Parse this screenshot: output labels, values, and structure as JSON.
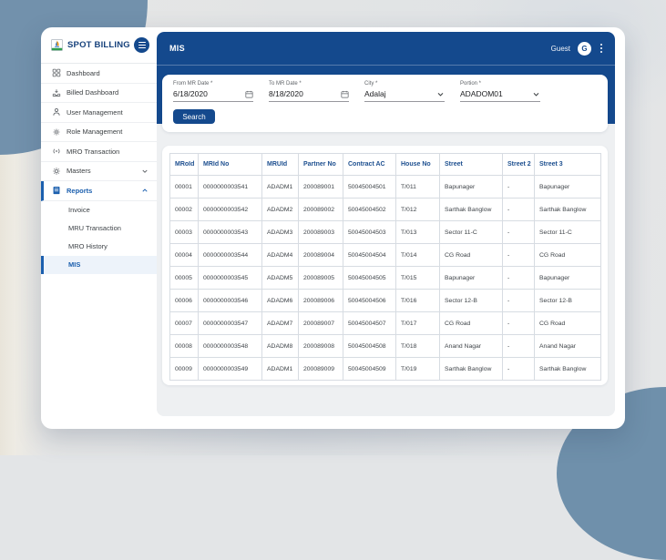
{
  "app": {
    "brand": "SPOT BILLING"
  },
  "topbar": {
    "title": "MIS",
    "user_label": "Guest",
    "avatar_initial": "G"
  },
  "sidebar": {
    "items": [
      {
        "label": "Dashboard",
        "icon": "dashboard-grid-icon"
      },
      {
        "label": "Billed Dashboard",
        "icon": "billed-dashboard-icon"
      },
      {
        "label": "User Management",
        "icon": "user-icon"
      },
      {
        "label": "Role Management",
        "icon": "role-gear-icon"
      },
      {
        "label": "MRO Transaction",
        "icon": "broadcast-icon"
      },
      {
        "label": "Masters",
        "icon": "masters-gear-icon",
        "chevron": "down"
      },
      {
        "label": "Reports",
        "icon": "reports-icon",
        "chevron": "up",
        "active": true
      }
    ],
    "report_children": [
      {
        "label": "Invoice",
        "selected": false
      },
      {
        "label": "MRU Transaction",
        "selected": false
      },
      {
        "label": "MRO History",
        "selected": false
      },
      {
        "label": "MIS",
        "selected": true
      }
    ]
  },
  "filters": {
    "fields": [
      {
        "label": "From MR Date *",
        "value": "6/18/2020",
        "control": "date"
      },
      {
        "label": "To MR Date *",
        "value": "8/18/2020",
        "control": "date"
      },
      {
        "label": "City *",
        "value": "Adalaj",
        "control": "select"
      },
      {
        "label": "Portion *",
        "value": "ADADOM01",
        "control": "select"
      }
    ],
    "search_label": "Search"
  },
  "table": {
    "headers": [
      "MRoId",
      "MRId No",
      "MRUId",
      "Partner No",
      "Contract AC",
      "House No",
      "Street",
      "Street 2",
      "Street 3"
    ],
    "rows": [
      [
        "00001",
        "0000000003541",
        "ADADM1",
        "200089001",
        "50045004501",
        "T/011",
        "Bapunager",
        "-",
        "Bapunager"
      ],
      [
        "00002",
        "0000000003542",
        "ADADM2",
        "200089002",
        "50045004502",
        "T/012",
        "Sarthak Banglow",
        "-",
        "Sarthak Banglow"
      ],
      [
        "00003",
        "0000000003543",
        "ADADM3",
        "200089003",
        "50045004503",
        "T/013",
        "Sector 11-C",
        "-",
        "Sector 11-C"
      ],
      [
        "00004",
        "0000000003544",
        "ADADM4",
        "200089004",
        "50045004504",
        "T/014",
        "CG Road",
        "-",
        "CG Road"
      ],
      [
        "00005",
        "0000000003545",
        "ADADM5",
        "200089005",
        "50045004505",
        "T/015",
        "Bapunager",
        "-",
        "Bapunager"
      ],
      [
        "00006",
        "0000000003546",
        "ADADM6",
        "200089006",
        "50045004506",
        "T/016",
        "Sector 12-B",
        "-",
        "Sector 12-B"
      ],
      [
        "00007",
        "0000000003547",
        "ADADM7",
        "200089007",
        "50045004507",
        "T/017",
        "CG Road",
        "-",
        "CG Road"
      ],
      [
        "00008",
        "0000000003548",
        "ADADM8",
        "200089008",
        "50045004508",
        "T/018",
        "Anand Nagar",
        "-",
        "Anand Nagar"
      ],
      [
        "00009",
        "0000000003549",
        "ADADM1",
        "200089009",
        "50045004509",
        "T/019",
        "Sarthak Banglow",
        "-",
        "Sarthak Banglow"
      ]
    ]
  },
  "colors": {
    "primary": "#14498d",
    "accent": "#1b5fae",
    "background_shape": "#7291ac"
  }
}
